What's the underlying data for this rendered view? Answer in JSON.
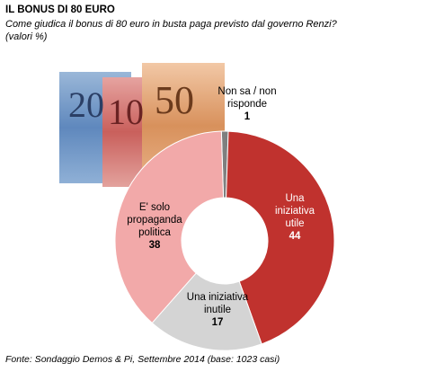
{
  "header": {
    "title": "IL BONUS DI 80 EURO",
    "question": "Come giudica il bonus di 80 euro in busta paga previsto dal governo Renzi?",
    "units": "(valori %)"
  },
  "footer": {
    "source": "Fonte: Sondaggio Demos & Pi, Settembre 2014 (base: 1023 casi)"
  },
  "banknotes": {
    "notes": [
      "20",
      "10",
      "50"
    ]
  },
  "chart_data": {
    "type": "pie",
    "variant": "donut",
    "categories": [
      "Non sa / non risponde",
      "Una iniziativa utile",
      "Una iniziativa inutile",
      "E' solo propaganda politica"
    ],
    "values": [
      1,
      44,
      17,
      38
    ],
    "label_lines": [
      [
        "Non sa / non",
        "risponde"
      ],
      [
        "Una",
        "iniziativa",
        "utile"
      ],
      [
        "Una iniziativa",
        "inutile"
      ],
      [
        "E' solo",
        "propaganda",
        "politica"
      ]
    ],
    "value_labels": [
      "1",
      "44",
      "17",
      "38"
    ],
    "colors": [
      "#7f7f7f",
      "#c0322e",
      "#d4d4d4",
      "#f2a9a9"
    ],
    "label_colors": [
      "#000000",
      "#ffffff",
      "#000000",
      "#000000"
    ]
  }
}
